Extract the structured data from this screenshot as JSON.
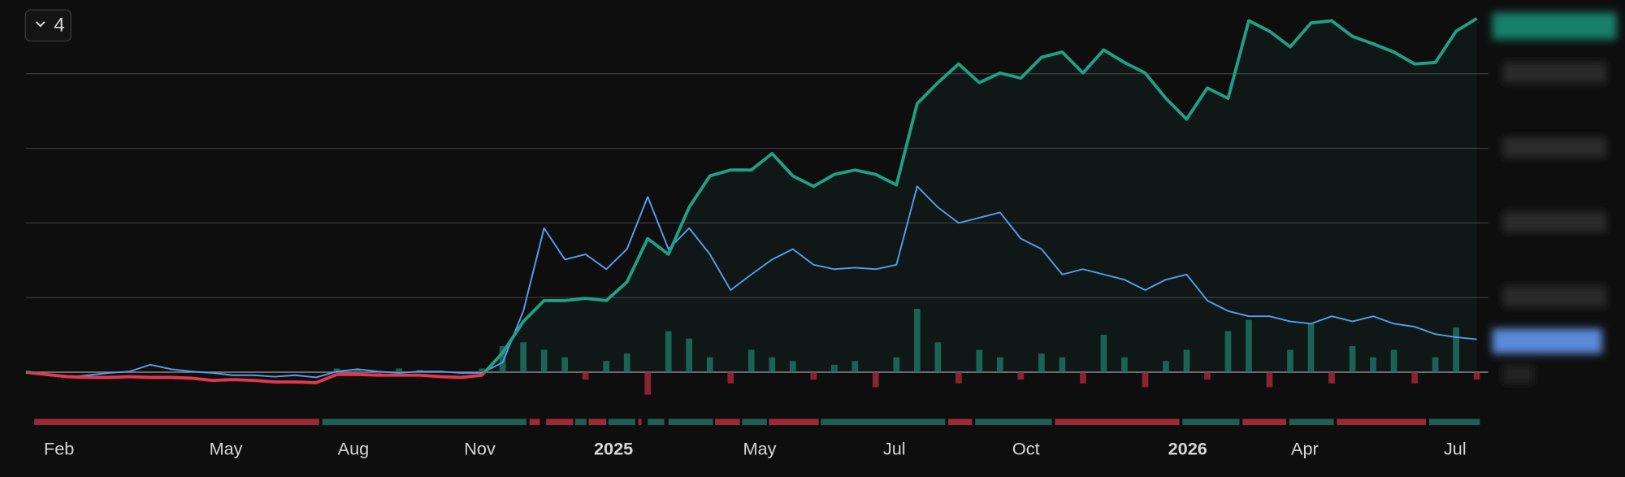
{
  "badge": 4,
  "chart_data": {
    "type": "line",
    "xlim": [
      0,
      70.55
    ],
    "ylim": [
      -0.6,
      5.0
    ],
    "yticks": [
      0,
      1,
      2,
      3,
      4
    ],
    "grid": true,
    "xticks": [
      {
        "value": 1.6,
        "label": "Feb"
      },
      {
        "value": 9.65,
        "label": "May"
      },
      {
        "value": 15.8,
        "label": "Aug"
      },
      {
        "value": 21.9,
        "label": "Nov"
      },
      {
        "value": 28.35,
        "label": "2025",
        "bold": true
      },
      {
        "value": 35.4,
        "label": "May"
      },
      {
        "value": 41.9,
        "label": "Jul"
      },
      {
        "value": 48.25,
        "label": "Oct"
      },
      {
        "value": 56.05,
        "label": "2026",
        "bold": true
      },
      {
        "value": 61.7,
        "label": "Apr"
      },
      {
        "value": 68.95,
        "label": "Jul"
      }
    ],
    "series": [
      {
        "color": "#1fa187",
        "negative_color": "#e5384f",
        "fill": true,
        "width": 3,
        "values": [
          0,
          -0.03,
          -0.06,
          -0.07,
          -0.07,
          -0.06,
          -0.07,
          -0.07,
          -0.08,
          -0.11,
          -0.1,
          -0.11,
          -0.13,
          -0.13,
          -0.14,
          -0.03,
          -0.03,
          -0.04,
          -0.04,
          -0.04,
          -0.06,
          -0.07,
          -0.04,
          0.26,
          0.68,
          0.96,
          0.96,
          0.99,
          0.96,
          1.21,
          1.79,
          1.58,
          2.21,
          2.63,
          2.71,
          2.71,
          2.93,
          2.63,
          2.49,
          2.65,
          2.71,
          2.65,
          2.51,
          3.6,
          3.88,
          4.13,
          3.88,
          4.01,
          3.94,
          4.22,
          4.29,
          4.01,
          4.32,
          4.15,
          4.01,
          3.67,
          3.39,
          3.81,
          3.67,
          4.71,
          4.57,
          4.36,
          4.68,
          4.71,
          4.5,
          4.4,
          4.29,
          4.13,
          4.15,
          4.57,
          4.74
        ]
      },
      {
        "color": "#5b9cf0",
        "width": 1.5,
        "values": [
          0.01,
          -0.04,
          -0.07,
          -0.04,
          -0.01,
          0.01,
          0.1,
          0.04,
          0.01,
          -0.01,
          -0.04,
          -0.04,
          -0.06,
          -0.04,
          -0.07,
          0.01,
          0.04,
          0.01,
          -0.01,
          0.01,
          0.01,
          -0.01,
          -0.01,
          0.13,
          0.82,
          1.93,
          1.51,
          1.58,
          1.38,
          1.65,
          2.35,
          1.65,
          1.93,
          1.58,
          1.1,
          1.31,
          1.51,
          1.65,
          1.44,
          1.38,
          1.4,
          1.38,
          1.44,
          2.49,
          2.21,
          2.0,
          2.07,
          2.14,
          1.79,
          1.65,
          1.31,
          1.38,
          1.31,
          1.24,
          1.1,
          1.24,
          1.31,
          0.96,
          0.82,
          0.75,
          0.75,
          0.68,
          0.65,
          0.75,
          0.68,
          0.75,
          0.65,
          0.61,
          0.51,
          0.47,
          0.44
        ]
      }
    ],
    "bars": {
      "up_color": "#1d6e5d",
      "down_color": "#a0283a",
      "values": [
        0,
        0,
        0,
        0,
        0,
        0,
        0,
        0,
        0,
        0,
        0,
        0,
        0,
        0,
        0,
        0.05,
        0.04,
        -0.03,
        0.05,
        0.03,
        0.02,
        -0.02,
        0.05,
        0.35,
        0.4,
        0.3,
        0.2,
        -0.1,
        0.15,
        0.25,
        -0.3,
        0.55,
        0.45,
        0.2,
        -0.15,
        0.3,
        0.2,
        0.15,
        -0.1,
        0.1,
        0.15,
        -0.2,
        0.2,
        0.85,
        0.4,
        -0.15,
        0.3,
        0.2,
        -0.1,
        0.25,
        0.2,
        -0.15,
        0.5,
        0.2,
        -0.2,
        0.15,
        0.3,
        -0.1,
        0.55,
        0.7,
        -0.2,
        0.3,
        0.65,
        -0.15,
        0.35,
        0.2,
        0.3,
        -0.15,
        0.2,
        0.6,
        -0.1
      ]
    },
    "bands": [
      {
        "x": [
          0.4,
          14.15
        ],
        "color": "#9c2a35"
      },
      {
        "x": [
          14.3,
          24.15
        ],
        "color": "#1f5e52"
      },
      {
        "x": [
          24.3,
          24.8
        ],
        "color": "#9c2a35"
      },
      {
        "x": [
          25.1,
          26.4
        ],
        "color": "#9c2a35"
      },
      {
        "x": [
          26.5,
          27.05
        ],
        "color": "#1f5e52"
      },
      {
        "x": [
          27.15,
          28.0
        ],
        "color": "#9c2a35"
      },
      {
        "x": [
          28.1,
          29.4
        ],
        "color": "#1f5e52"
      },
      {
        "x": [
          29.55,
          29.7
        ],
        "color": "#9c2a35"
      },
      {
        "x": [
          30.0,
          30.8
        ],
        "color": "#1f5e52"
      },
      {
        "x": [
          31.0,
          33.15
        ],
        "color": "#1f5e52"
      },
      {
        "x": [
          33.25,
          34.45
        ],
        "color": "#9c2a35"
      },
      {
        "x": [
          34.55,
          35.75
        ],
        "color": "#1f5e52"
      },
      {
        "x": [
          35.85,
          38.25
        ],
        "color": "#9c2a35"
      },
      {
        "x": [
          38.35,
          44.35
        ],
        "color": "#1f5e52"
      },
      {
        "x": [
          44.5,
          45.65
        ],
        "color": "#9c2a35"
      },
      {
        "x": [
          45.8,
          49.5
        ],
        "color": "#1f5e52"
      },
      {
        "x": [
          49.65,
          55.65
        ],
        "color": "#9c2a35"
      },
      {
        "x": [
          55.8,
          58.55
        ],
        "color": "#1f5e52"
      },
      {
        "x": [
          58.7,
          60.8
        ],
        "color": "#9c2a35"
      },
      {
        "x": [
          60.95,
          63.1
        ],
        "color": "#1f5e52"
      },
      {
        "x": [
          63.25,
          67.55
        ],
        "color": "#9c2a35"
      },
      {
        "x": [
          67.7,
          70.15
        ],
        "color": "#1f5e52"
      }
    ]
  }
}
